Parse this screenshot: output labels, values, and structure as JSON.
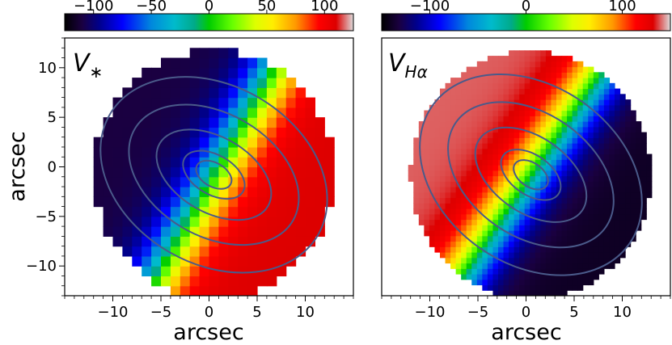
{
  "chart_data": [
    {
      "type": "heatmap",
      "panel_label": "V",
      "panel_label_subscript": "∗",
      "xlabel": "",
      "ylabel": "arcsec",
      "xlim": [
        -15,
        15
      ],
      "ylim": [
        -13,
        13
      ],
      "x_ticks": [
        -10,
        -5,
        0,
        5,
        10
      ],
      "y_ticks": [
        10,
        5,
        0,
        -5,
        -10
      ],
      "x_tick_labels": [
        "−10",
        "−5",
        "0",
        "5",
        "10"
      ],
      "y_tick_labels": [
        "10",
        "5",
        "0",
        "−5",
        "−10"
      ],
      "colorbar": {
        "range": [
          -125,
          125
        ],
        "ticks": [
          -100,
          -50,
          0,
          50,
          100
        ],
        "tick_labels": [
          "−100",
          "−50",
          "0",
          "50",
          "100"
        ],
        "colormap": "nipy_spectral"
      },
      "velocity_field": {
        "center_x": 0.5,
        "center_y": -0.8,
        "kinematic_axis_pa_deg": 30,
        "v_amplitude": 110,
        "map_radius": 12.5
      },
      "contour_levels_arcsec": [
        [
          2.0,
          1.2
        ],
        [
          3.5,
          2.0
        ],
        [
          6.5,
          3.8
        ],
        [
          9.5,
          6.2
        ],
        [
          12.5,
          9.0
        ]
      ]
    },
    {
      "type": "heatmap",
      "panel_label": "V",
      "panel_label_subscript": "Hα",
      "xlabel": "arcsec",
      "ylabel": "",
      "xlim": [
        -15,
        15
      ],
      "ylim": [
        -13,
        13
      ],
      "x_ticks": [
        -10,
        -5,
        0,
        5,
        10
      ],
      "x_tick_labels": [
        "−10",
        "−5",
        "0",
        "5",
        "10"
      ],
      "colorbar": {
        "range": [
          -150,
          150
        ],
        "ticks": [
          -100,
          0,
          100
        ],
        "tick_labels": [
          "−100",
          "0",
          "100"
        ],
        "colormap": "nipy_spectral"
      },
      "velocity_field": {
        "center_x": 0.5,
        "center_y": -0.8,
        "kinematic_axis_pa_deg": 35,
        "v_amplitude": 140,
        "map_radius": 12.5
      },
      "contour_levels_arcsec": [
        [
          2.0,
          1.2
        ],
        [
          3.5,
          2.0
        ],
        [
          6.5,
          3.8
        ],
        [
          9.5,
          6.2
        ],
        [
          12.5,
          9.0
        ]
      ]
    }
  ],
  "shared_xlabel": "arcsec",
  "colors": {
    "contour": "#4a5a8a",
    "axis": "#000000",
    "masked": "#ffffff"
  }
}
